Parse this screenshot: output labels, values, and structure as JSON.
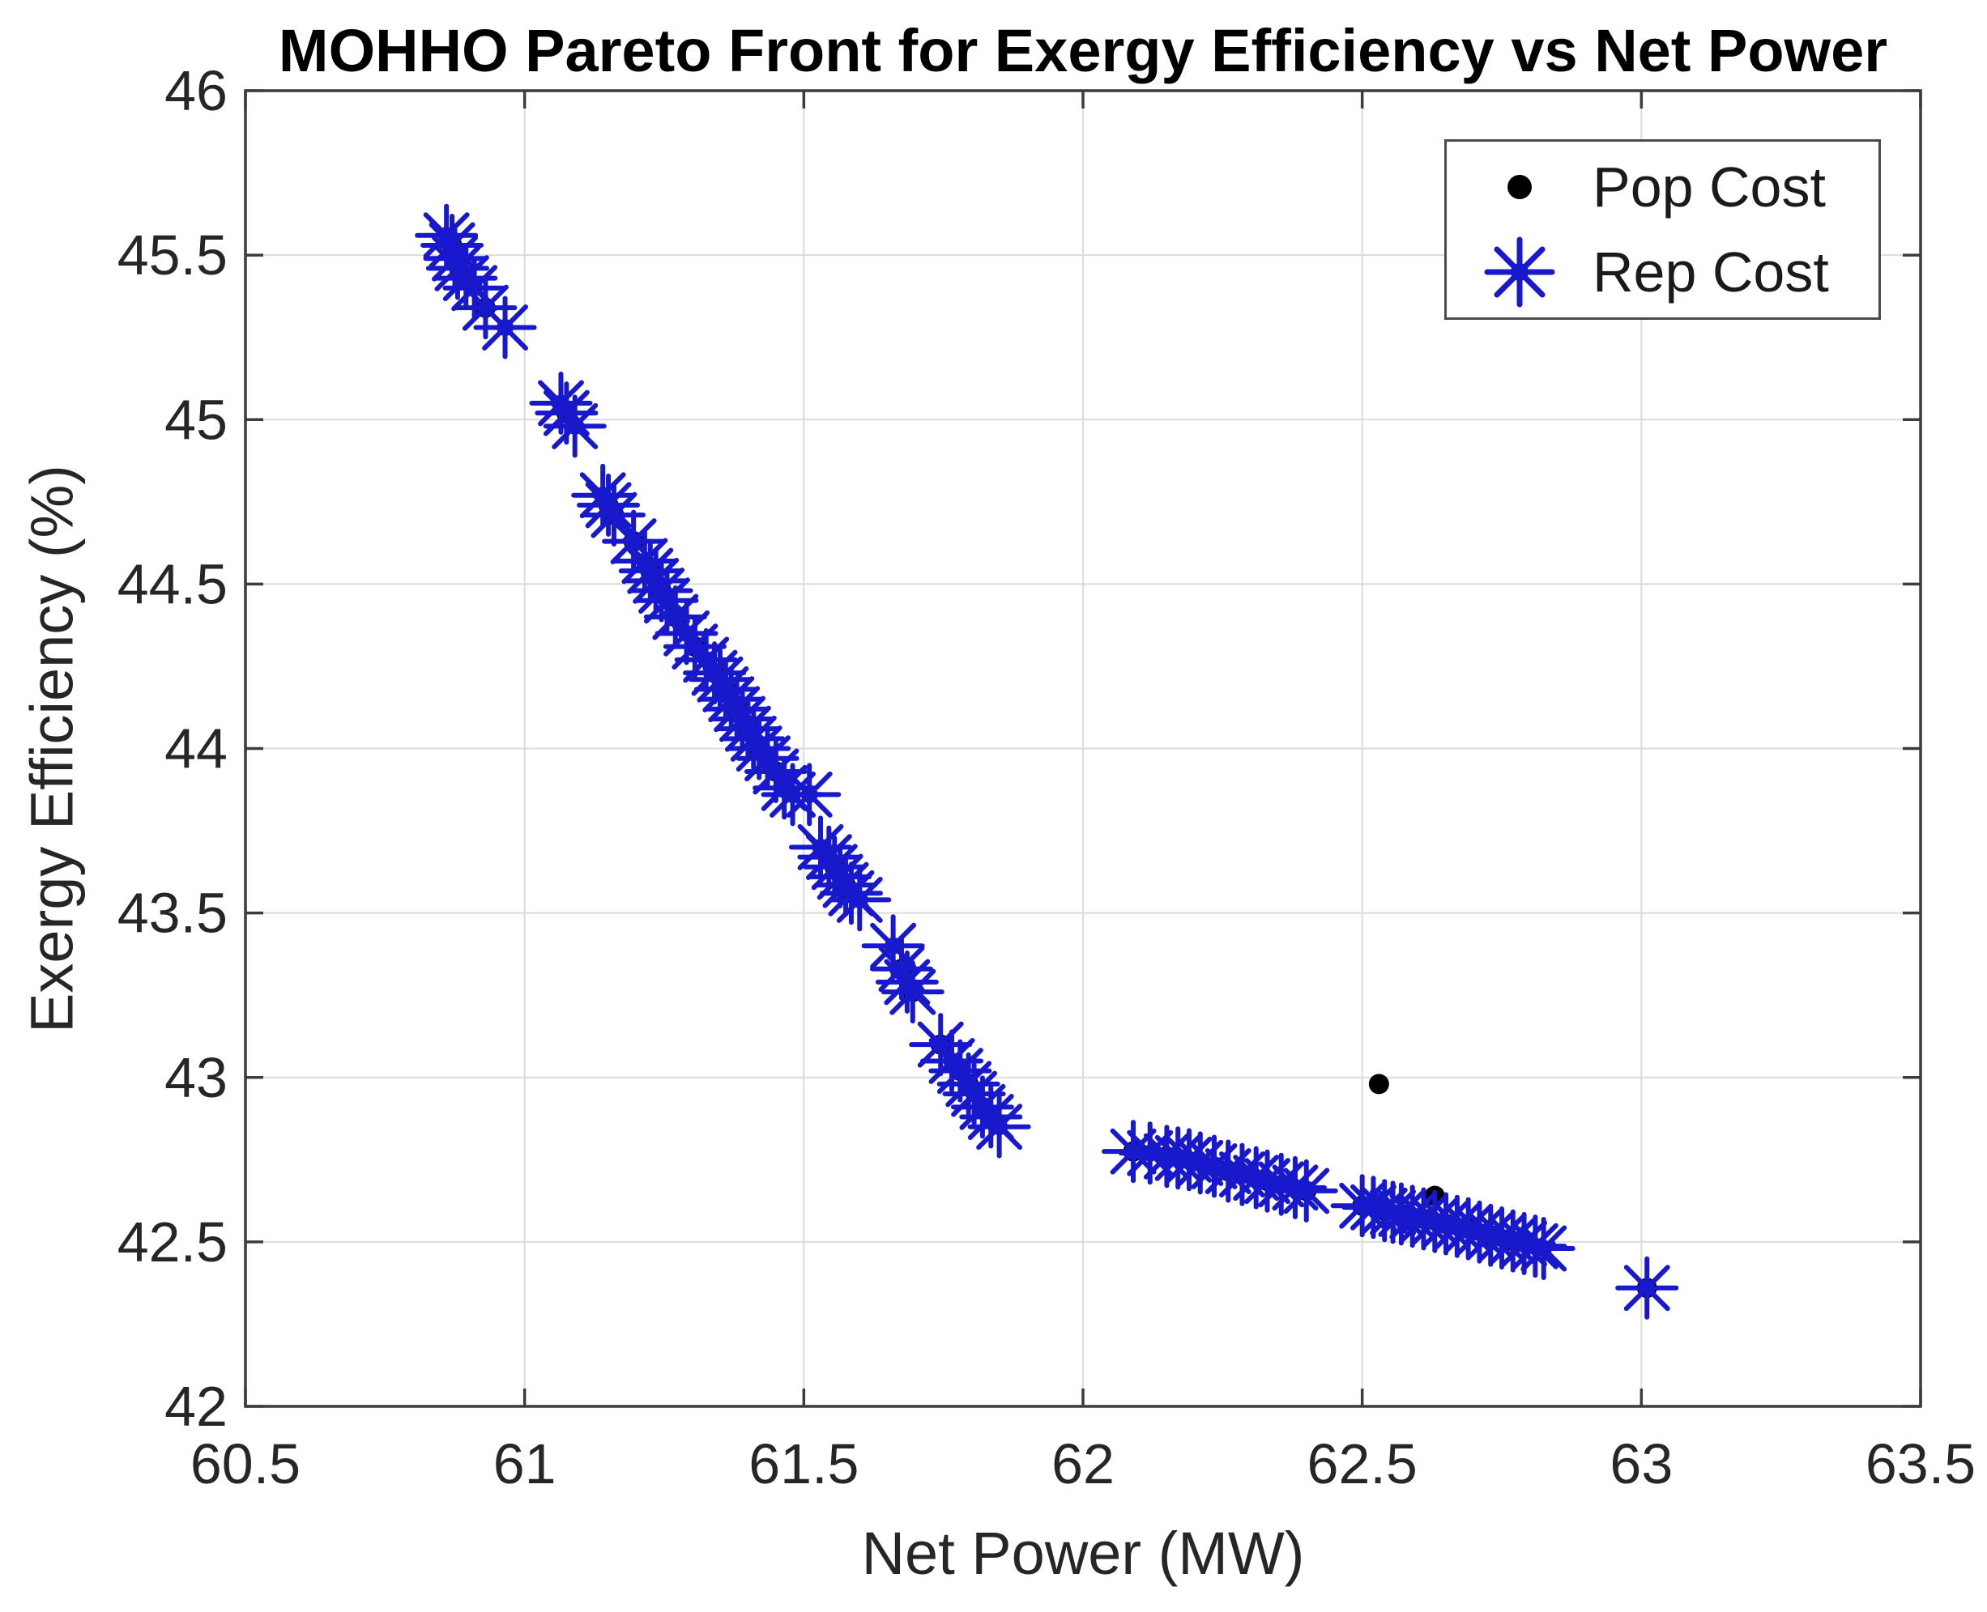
{
  "chart_data": {
    "type": "scatter",
    "title": "MOHHO Pareto Front for Exergy Efficiency vs Net Power",
    "xlabel": "Net Power (MW)",
    "ylabel": "Exergy Efficiency (%)",
    "xlim": [
      60.5,
      63.5
    ],
    "ylim": [
      42,
      46
    ],
    "x_ticks": [
      60.5,
      61,
      61.5,
      62,
      62.5,
      63,
      63.5
    ],
    "y_ticks": [
      42,
      42.5,
      43,
      43.5,
      44,
      44.5,
      45,
      45.5,
      46
    ],
    "grid": true,
    "legend_position": "top-right",
    "colors": {
      "pop": "#000000",
      "rep": "#1818cc",
      "grid": "#dbdbdb",
      "frame": "#3c3c3c",
      "tick_text": "#262626"
    },
    "series": [
      {
        "name": "Pop Cost",
        "marker": "dot",
        "color": "#000000",
        "points": [
          [
            60.87,
            45.53
          ],
          [
            60.895,
            45.43
          ],
          [
            60.93,
            45.34
          ],
          [
            61.075,
            45.02
          ],
          [
            61.15,
            44.74
          ],
          [
            61.16,
            44.71
          ],
          [
            61.195,
            44.63
          ],
          [
            61.225,
            44.54
          ],
          [
            61.245,
            44.48
          ],
          [
            61.27,
            44.4
          ],
          [
            61.305,
            44.31
          ],
          [
            61.34,
            44.23
          ],
          [
            61.36,
            44.18
          ],
          [
            61.38,
            44.12
          ],
          [
            61.4,
            44.06
          ],
          [
            61.42,
            44.0
          ],
          [
            61.45,
            43.93
          ],
          [
            61.465,
            43.88
          ],
          [
            61.555,
            43.64
          ],
          [
            61.575,
            43.585
          ],
          [
            61.585,
            43.56
          ],
          [
            61.675,
            43.33
          ],
          [
            61.695,
            43.26
          ],
          [
            61.745,
            43.1
          ],
          [
            61.78,
            43.02
          ],
          [
            61.795,
            42.98
          ],
          [
            61.82,
            42.91
          ],
          [
            61.835,
            42.88
          ],
          [
            62.09,
            42.775
          ],
          [
            62.15,
            42.76
          ],
          [
            62.26,
            42.715
          ],
          [
            62.33,
            42.685
          ],
          [
            62.4,
            42.655
          ],
          [
            62.5,
            42.61
          ],
          [
            62.54,
            42.595
          ],
          [
            62.57,
            42.585
          ],
          [
            62.61,
            42.57
          ],
          [
            62.65,
            42.555
          ],
          [
            62.69,
            42.54
          ],
          [
            62.73,
            42.52
          ],
          [
            62.77,
            42.503
          ],
          [
            63.01,
            42.36
          ],
          [
            62.53,
            42.98
          ],
          [
            62.63,
            42.64
          ]
        ]
      },
      {
        "name": "Rep Cost",
        "marker": "asterisk",
        "color": "#1818cc",
        "points": [
          [
            60.86,
            45.56
          ],
          [
            60.87,
            45.53
          ],
          [
            60.875,
            45.49
          ],
          [
            60.88,
            45.46
          ],
          [
            60.895,
            45.43
          ],
          [
            60.91,
            45.4
          ],
          [
            60.93,
            45.34
          ],
          [
            60.965,
            45.28
          ],
          [
            61.065,
            45.05
          ],
          [
            61.075,
            45.02
          ],
          [
            61.09,
            44.98
          ],
          [
            61.14,
            44.77
          ],
          [
            61.15,
            44.74
          ],
          [
            61.16,
            44.71
          ],
          [
            61.195,
            44.63
          ],
          [
            61.215,
            44.57
          ],
          [
            61.225,
            44.54
          ],
          [
            61.235,
            44.51
          ],
          [
            61.245,
            44.48
          ],
          [
            61.255,
            44.45
          ],
          [
            61.27,
            44.4
          ],
          [
            61.29,
            44.35
          ],
          [
            61.305,
            44.31
          ],
          [
            61.325,
            44.27
          ],
          [
            61.34,
            44.23
          ],
          [
            61.35,
            44.21
          ],
          [
            61.36,
            44.18
          ],
          [
            61.37,
            44.15
          ],
          [
            61.38,
            44.12
          ],
          [
            61.39,
            44.09
          ],
          [
            61.4,
            44.06
          ],
          [
            61.41,
            44.03
          ],
          [
            61.42,
            44.0
          ],
          [
            61.435,
            43.97
          ],
          [
            61.45,
            43.93
          ],
          [
            61.465,
            43.88
          ],
          [
            61.48,
            43.86
          ],
          [
            61.51,
            43.86
          ],
          [
            61.53,
            43.7
          ],
          [
            61.545,
            43.67
          ],
          [
            61.555,
            43.64
          ],
          [
            61.565,
            43.61
          ],
          [
            61.575,
            43.585
          ],
          [
            61.585,
            43.56
          ],
          [
            61.6,
            43.54
          ],
          [
            61.66,
            43.4
          ],
          [
            61.675,
            43.33
          ],
          [
            61.685,
            43.29
          ],
          [
            61.695,
            43.26
          ],
          [
            61.745,
            43.1
          ],
          [
            61.765,
            43.05
          ],
          [
            61.78,
            43.02
          ],
          [
            61.795,
            42.98
          ],
          [
            61.805,
            42.95
          ],
          [
            61.82,
            42.91
          ],
          [
            61.835,
            42.88
          ],
          [
            61.85,
            42.85
          ],
          [
            62.09,
            42.775
          ],
          [
            62.12,
            42.77
          ],
          [
            62.15,
            42.76
          ],
          [
            62.17,
            42.755
          ],
          [
            62.19,
            42.75
          ],
          [
            62.21,
            42.74
          ],
          [
            62.235,
            42.73
          ],
          [
            62.26,
            42.715
          ],
          [
            62.285,
            42.705
          ],
          [
            62.31,
            42.695
          ],
          [
            62.33,
            42.685
          ],
          [
            62.355,
            42.675
          ],
          [
            62.38,
            42.665
          ],
          [
            62.4,
            42.655
          ],
          [
            62.5,
            42.61
          ],
          [
            62.52,
            42.605
          ],
          [
            62.54,
            42.595
          ],
          [
            62.555,
            42.59
          ],
          [
            62.57,
            42.585
          ],
          [
            62.59,
            42.578
          ],
          [
            62.61,
            42.57
          ],
          [
            62.63,
            42.562
          ],
          [
            62.65,
            42.555
          ],
          [
            62.67,
            42.547
          ],
          [
            62.69,
            42.54
          ],
          [
            62.71,
            42.53
          ],
          [
            62.73,
            42.52
          ],
          [
            62.75,
            42.512
          ],
          [
            62.77,
            42.503
          ],
          [
            62.79,
            42.495
          ],
          [
            62.81,
            42.487
          ],
          [
            62.825,
            42.48
          ],
          [
            63.01,
            42.36
          ]
        ]
      }
    ]
  }
}
